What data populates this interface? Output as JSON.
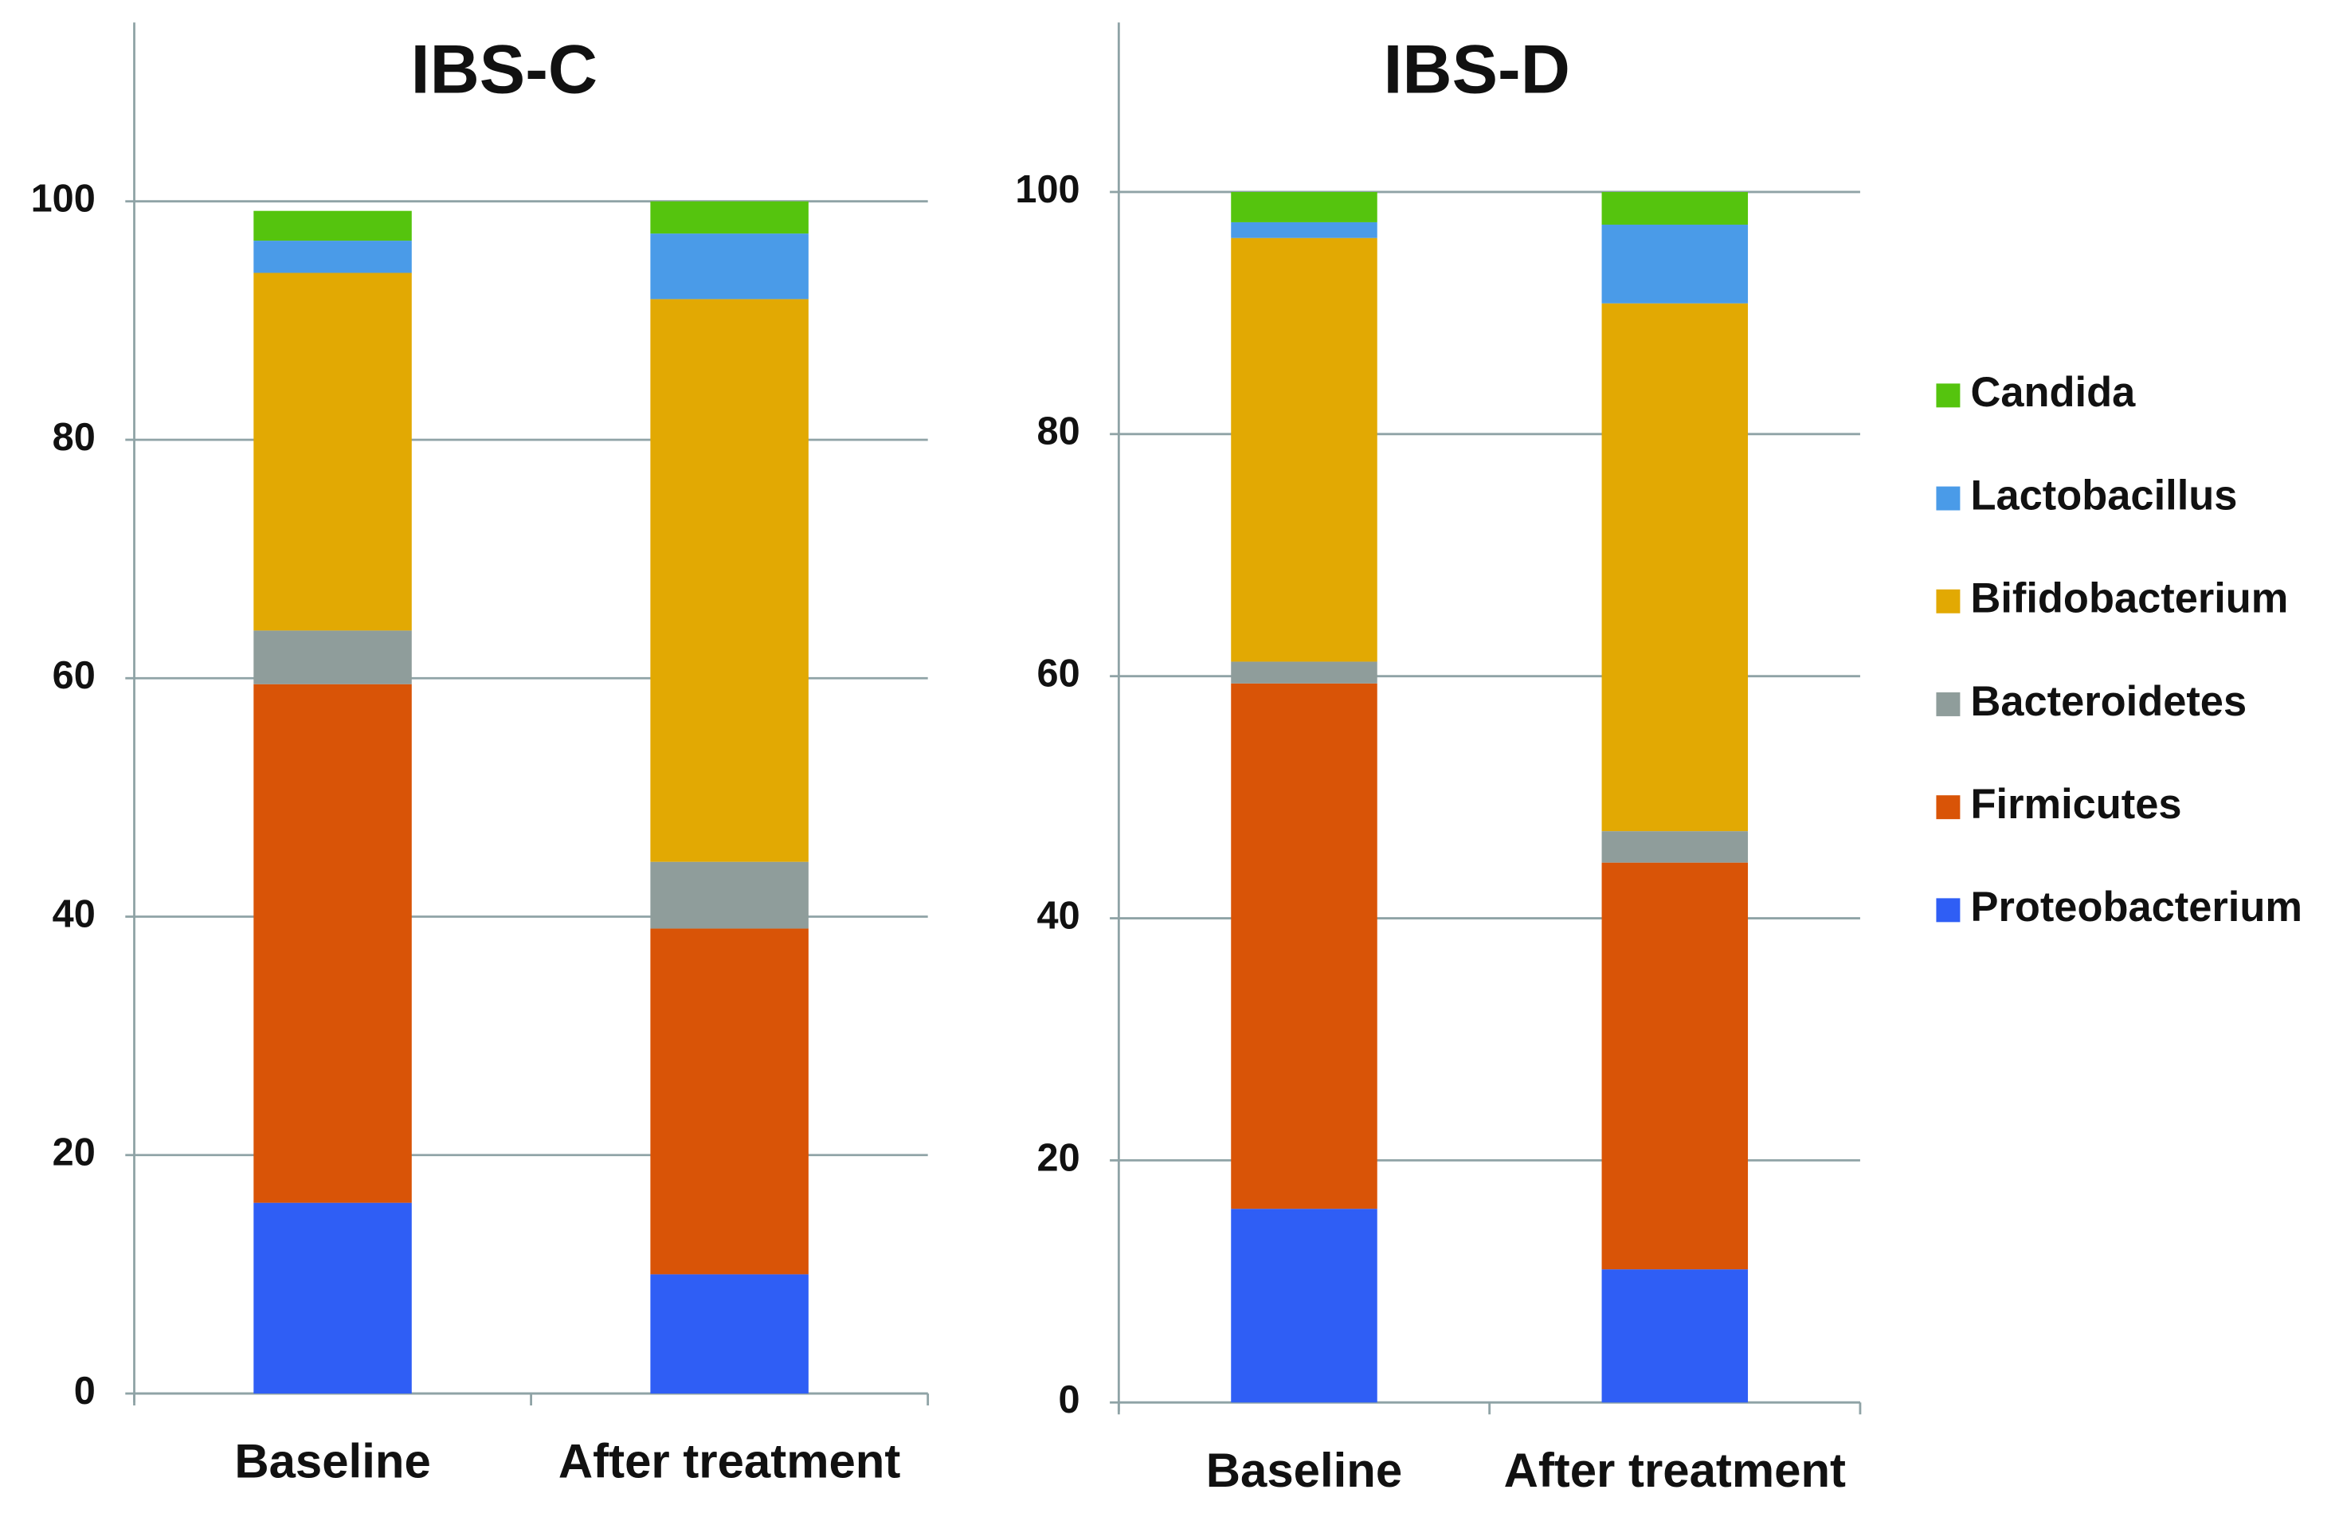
{
  "chart_data": [
    {
      "type": "stacked_bar",
      "title": "IBS-C",
      "categories": [
        "Baseline",
        "After treatment"
      ],
      "ylim": [
        0,
        115
      ],
      "yticks": [
        0,
        20,
        40,
        60,
        80,
        100
      ],
      "grid": true,
      "series": [
        {
          "color": "#2f5ef5",
          "values": [
            16,
            10
          ]
        },
        {
          "color": "#d95407",
          "values": [
            43.5,
            29
          ]
        },
        {
          "color": "#8f9d9b",
          "values": [
            4.5,
            5.6
          ]
        },
        {
          "color": "#e2a903",
          "values": [
            30,
            47.2
          ]
        },
        {
          "color": "#4a9be8",
          "values": [
            2.7,
            5.5
          ]
        },
        {
          "color": "#55c40e",
          "values": [
            2.5,
            2.7
          ]
        }
      ]
    },
    {
      "type": "stacked_bar",
      "title": "IBS-D",
      "categories": [
        "Baseline",
        "After treatment"
      ],
      "ylim": [
        0,
        114
      ],
      "yticks": [
        0,
        20,
        40,
        60,
        80,
        100
      ],
      "grid": true,
      "series": [
        {
          "name": "Proteobacterium",
          "color": "#2f5ef5",
          "values": [
            16,
            11
          ]
        },
        {
          "name": "Firmicutes",
          "color": "#d95407",
          "values": [
            43.4,
            33.6
          ]
        },
        {
          "name": "Bacteroidetes",
          "color": "#8f9d9b",
          "values": [
            1.8,
            2.6
          ]
        },
        {
          "name": "Bifidobacterium",
          "color": "#e2a903",
          "values": [
            35,
            43.6
          ]
        },
        {
          "name": "Lactobacillus",
          "color": "#4a9be8",
          "values": [
            1.3,
            6.5
          ]
        },
        {
          "name": "Candida",
          "color": "#55c40e",
          "values": [
            2.5,
            2.7
          ]
        }
      ]
    }
  ]
}
